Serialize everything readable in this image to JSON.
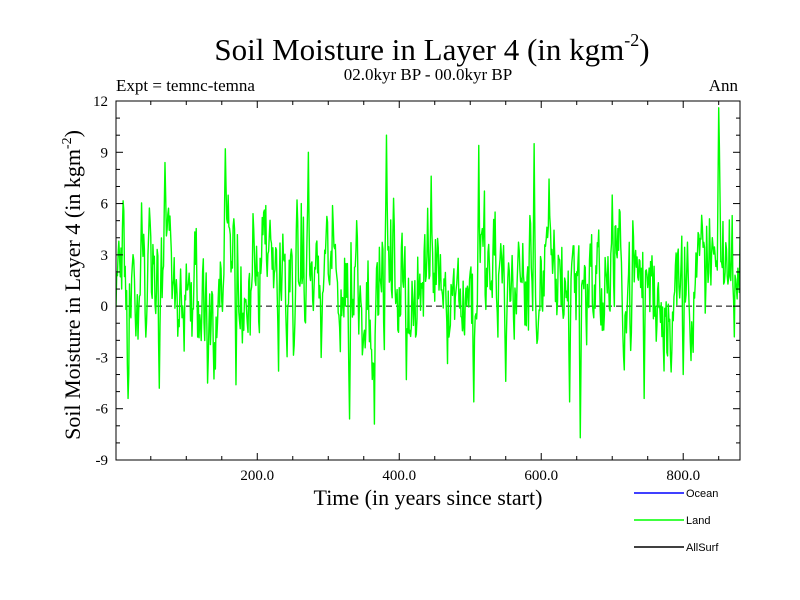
{
  "chart_data": {
    "type": "line",
    "title": "Soil Moisture in Layer 4 (in kgm",
    "title_sup": "-2",
    "title_close": ")",
    "subtitle": "02.0kyr BP - 00.0kyr BP",
    "experiment": "Expt = temnc-temna",
    "season": "Ann",
    "xlabel": "Time (in years since start)",
    "ylabel": "Soil Moisture in Layer 4 (in kgm",
    "ylabel_sup": "-2",
    "ylabel_close": ")",
    "xlim": [
      1,
      880
    ],
    "ylim": [
      -9,
      12
    ],
    "x_ticks": [
      200,
      400,
      600,
      800
    ],
    "x_tick_labels": [
      "200.0",
      "400.0",
      "600.0",
      "800.0"
    ],
    "y_ticks": [
      -9,
      -6,
      -3,
      0,
      3,
      6,
      9,
      12
    ],
    "y_tick_labels": [
      "-9",
      "-6",
      "-3",
      "0",
      "3",
      "6",
      "9",
      "12"
    ],
    "zero_line": "dashed",
    "legend_position": "bottom-right, outside plot",
    "series": [
      {
        "name": "Ocean",
        "color": "#0000ff",
        "values": []
      },
      {
        "name": "Land",
        "color": "#00ff00",
        "x_start": 1,
        "x_step": 1,
        "generator": {
          "noise_scale": 3.6,
          "baseline": 1.5,
          "seed": 20
        },
        "values": []
      },
      {
        "name": "AllSurf",
        "color": "#000000",
        "values": []
      }
    ],
    "land_key_points": [
      {
        "x": 5,
        "y": 3.8
      },
      {
        "x": 18,
        "y": -5.4
      },
      {
        "x": 40,
        "y": 4.2
      },
      {
        "x": 62,
        "y": -4.8
      },
      {
        "x": 70,
        "y": 8.4
      },
      {
        "x": 90,
        "y": -1.2
      },
      {
        "x": 130,
        "y": -4.5
      },
      {
        "x": 155,
        "y": 9.2
      },
      {
        "x": 170,
        "y": -4.6
      },
      {
        "x": 230,
        "y": -3.8
      },
      {
        "x": 272,
        "y": 9.0
      },
      {
        "x": 290,
        "y": -3.0
      },
      {
        "x": 330,
        "y": -6.6
      },
      {
        "x": 340,
        "y": 5.0
      },
      {
        "x": 365,
        "y": -6.9
      },
      {
        "x": 382,
        "y": 10.0
      },
      {
        "x": 410,
        "y": -4.3
      },
      {
        "x": 445,
        "y": 7.6
      },
      {
        "x": 505,
        "y": -5.6
      },
      {
        "x": 512,
        "y": 9.4
      },
      {
        "x": 550,
        "y": -4.4
      },
      {
        "x": 590,
        "y": 9.5
      },
      {
        "x": 640,
        "y": -5.6
      },
      {
        "x": 655,
        "y": -7.7
      },
      {
        "x": 700,
        "y": 6.5
      },
      {
        "x": 745,
        "y": -5.4
      },
      {
        "x": 800,
        "y": -4.0
      },
      {
        "x": 850,
        "y": 11.6
      },
      {
        "x": 875,
        "y": 1.0
      }
    ]
  },
  "legend": {
    "items": [
      {
        "label": "Ocean",
        "color": "#0000ff"
      },
      {
        "label": "Land",
        "color": "#00ff00"
      },
      {
        "label": "AllSurf",
        "color": "#000000"
      }
    ]
  }
}
